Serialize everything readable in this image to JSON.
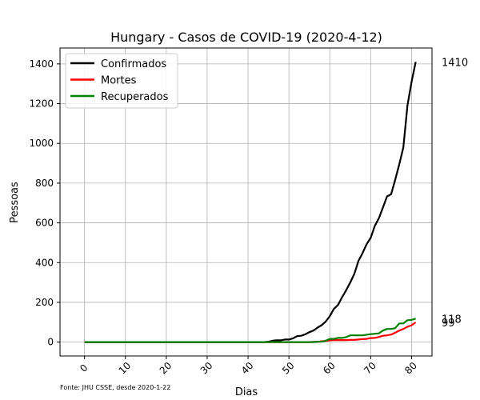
{
  "chart_data": {
    "type": "line",
    "title": "Hungary - Casos de COVID-19 (2020-4-12)",
    "xlabel": "Dias",
    "ylabel": "Pessoas",
    "xlim": [
      -6,
      85
    ],
    "ylim": [
      -70,
      1480
    ],
    "xticks": [
      0,
      10,
      20,
      30,
      40,
      50,
      60,
      70,
      80
    ],
    "yticks": [
      0,
      200,
      400,
      600,
      800,
      1000,
      1200,
      1400
    ],
    "grid": true,
    "legend_position": "top-left",
    "footnote": "Fonte: JHU CSSE, desde 2020-1-22",
    "series": [
      {
        "name": "Confirmados",
        "color": "#000000",
        "end_label": "1410",
        "points": [
          [
            0,
            0
          ],
          [
            40,
            0
          ],
          [
            41,
            0
          ],
          [
            42,
            0
          ],
          [
            43,
            0
          ],
          [
            44,
            0
          ],
          [
            45,
            2
          ],
          [
            46,
            7
          ],
          [
            47,
            9
          ],
          [
            48,
            9
          ],
          [
            49,
            13
          ],
          [
            50,
            13
          ],
          [
            51,
            19
          ],
          [
            52,
            30
          ],
          [
            53,
            32
          ],
          [
            54,
            39
          ],
          [
            55,
            50
          ],
          [
            56,
            58
          ],
          [
            57,
            73
          ],
          [
            58,
            85
          ],
          [
            59,
            103
          ],
          [
            60,
            131
          ],
          [
            61,
            167
          ],
          [
            62,
            187
          ],
          [
            63,
            226
          ],
          [
            64,
            261
          ],
          [
            65,
            300
          ],
          [
            66,
            343
          ],
          [
            67,
            408
          ],
          [
            68,
            447
          ],
          [
            69,
            492
          ],
          [
            70,
            525
          ],
          [
            71,
            585
          ],
          [
            72,
            623
          ],
          [
            73,
            678
          ],
          [
            74,
            733
          ],
          [
            75,
            744
          ],
          [
            76,
            817
          ],
          [
            77,
            895
          ],
          [
            78,
            980
          ],
          [
            79,
            1190
          ],
          [
            80,
            1310
          ],
          [
            81,
            1410
          ]
        ]
      },
      {
        "name": "Mortes",
        "color": "#ff0000",
        "end_label": "99",
        "points": [
          [
            0,
            0
          ],
          [
            55,
            0
          ],
          [
            56,
            1
          ],
          [
            57,
            1
          ],
          [
            58,
            4
          ],
          [
            59,
            6
          ],
          [
            60,
            9
          ],
          [
            61,
            10
          ],
          [
            62,
            10
          ],
          [
            63,
            10
          ],
          [
            64,
            10
          ],
          [
            65,
            11
          ],
          [
            66,
            11
          ],
          [
            67,
            13
          ],
          [
            68,
            15
          ],
          [
            69,
            16
          ],
          [
            70,
            20
          ],
          [
            71,
            21
          ],
          [
            72,
            26
          ],
          [
            73,
            32
          ],
          [
            74,
            34
          ],
          [
            75,
            38
          ],
          [
            76,
            47
          ],
          [
            77,
            58
          ],
          [
            78,
            66
          ],
          [
            79,
            77
          ],
          [
            80,
            85
          ],
          [
            81,
            99
          ]
        ]
      },
      {
        "name": "Recuperados",
        "color": "#008000",
        "end_label": "118",
        "points": [
          [
            0,
            0
          ],
          [
            56,
            0
          ],
          [
            57,
            2
          ],
          [
            58,
            2
          ],
          [
            59,
            7
          ],
          [
            60,
            16
          ],
          [
            61,
            16
          ],
          [
            62,
            21
          ],
          [
            63,
            21
          ],
          [
            64,
            25
          ],
          [
            65,
            34
          ],
          [
            66,
            34
          ],
          [
            67,
            34
          ],
          [
            68,
            34
          ],
          [
            69,
            37
          ],
          [
            70,
            40
          ],
          [
            71,
            42
          ],
          [
            72,
            44
          ],
          [
            73,
            58
          ],
          [
            74,
            66
          ],
          [
            75,
            66
          ],
          [
            76,
            70
          ],
          [
            77,
            94
          ],
          [
            78,
            94
          ],
          [
            79,
            110
          ],
          [
            80,
            112
          ],
          [
            81,
            118
          ]
        ]
      }
    ]
  }
}
